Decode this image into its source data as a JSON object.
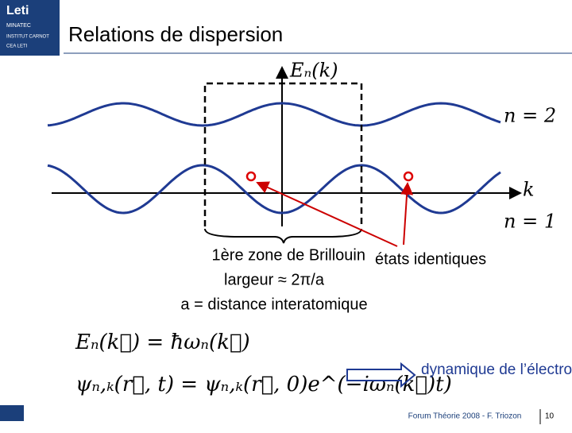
{
  "slide": {
    "title": "Relations de dispersion",
    "logo": {
      "name": "Leti",
      "sub": "MINATEC",
      "institut": "INSTITUT CARNOT",
      "lab": "CEA LETI"
    },
    "axis": {
      "energy": "Eₙ(k)",
      "k": "k",
      "n2": "n = 2",
      "n1": "n = 1"
    },
    "annotations": {
      "zone": "1ère zone de Brillouin",
      "width": "largeur ≈ 2π/a",
      "a": "a = distance interatomique",
      "states": "états identiques"
    },
    "equations": [
      "Eₙ(k⃗) = ħωₙ(k⃗)",
      "ψₙ,ₖ(r⃗, t) = ψₙ,ₖ(r⃗, 0)e^(−iωₙ(k⃗)t)"
    ],
    "dynamics": "dynamique de l’électron",
    "footer": {
      "text": "Forum Théorie 2008 - F. Triozon",
      "page": "10"
    }
  }
}
